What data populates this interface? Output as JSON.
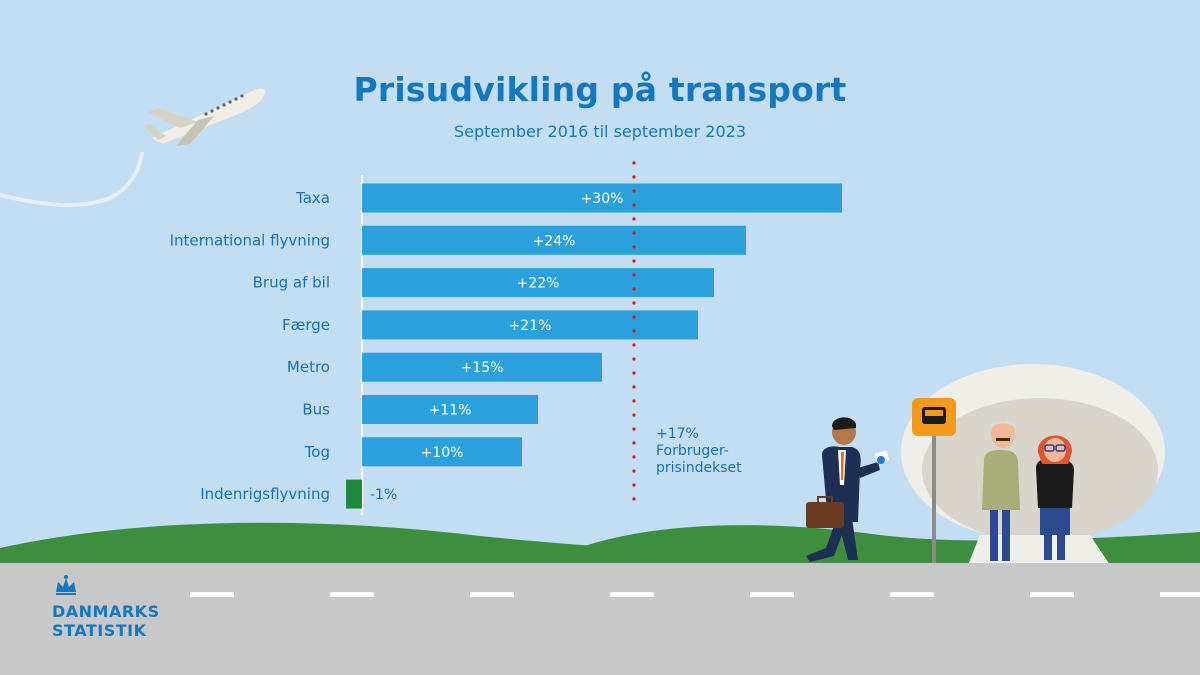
{
  "title": "Prisudvikling på transport",
  "subtitle": "September 2016 til september 2023",
  "logo": {
    "line1": "DANMARKS",
    "line2": "STATISTIK",
    "icon": "crown-icon"
  },
  "colors": {
    "positive": "#2aa0dd",
    "negative": "#1e8a3c",
    "reference": "#d4191f",
    "text": "#1a70b4",
    "background": "#c3ddf3"
  },
  "chart_data": {
    "type": "bar",
    "orientation": "horizontal",
    "title": "Prisudvikling på transport",
    "subtitle": "September 2016 til september 2023",
    "categories": [
      "Taxa",
      "International flyvning",
      "Brug af bil",
      "Færge",
      "Metro",
      "Bus",
      "Tog",
      "Indenrigsflyvning"
    ],
    "values": [
      30,
      24,
      22,
      21,
      15,
      11,
      10,
      -1
    ],
    "value_labels": [
      "+30%",
      "+24%",
      "+22%",
      "+21%",
      "+15%",
      "+11%",
      "+10%",
      "-1%"
    ],
    "unit": "%",
    "xlim": [
      -2,
      30
    ],
    "grid": false,
    "reference_line": {
      "value": 17,
      "label_value": "+17%",
      "label_line1": "Forbruger-",
      "label_line2": "prisindekset"
    }
  }
}
